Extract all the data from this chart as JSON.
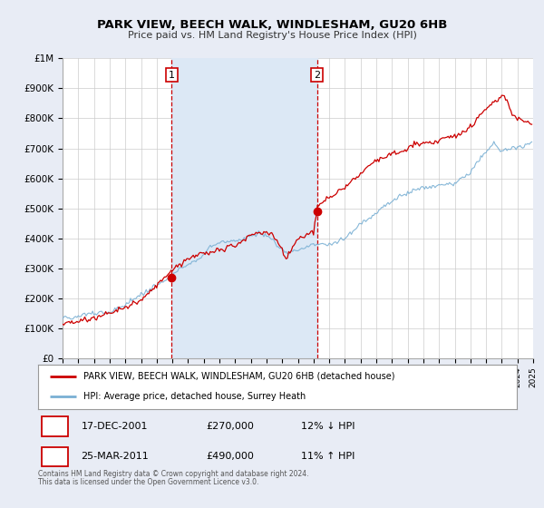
{
  "title": "PARK VIEW, BEECH WALK, WINDLESHAM, GU20 6HB",
  "subtitle": "Price paid vs. HM Land Registry's House Price Index (HPI)",
  "legend_line1": "PARK VIEW, BEECH WALK, WINDLESHAM, GU20 6HB (detached house)",
  "legend_line2": "HPI: Average price, detached house, Surrey Heath",
  "sale1_date": "17-DEC-2001",
  "sale1_price": "£270,000",
  "sale1_hpi": "12% ↓ HPI",
  "sale1_x": 2001.96,
  "sale1_y": 270000,
  "sale2_date": "25-MAR-2011",
  "sale2_price": "£490,000",
  "sale2_hpi": "11% ↑ HPI",
  "sale2_x": 2011.23,
  "sale2_y": 490000,
  "footnote1": "Contains HM Land Registry data © Crown copyright and database right 2024.",
  "footnote2": "This data is licensed under the Open Government Licence v3.0.",
  "background_color": "#e8ecf5",
  "plot_bg_color": "#ffffff",
  "red_line_color": "#cc0000",
  "blue_line_color": "#7ab0d4",
  "vline_color": "#cc0000",
  "shade_color": "#dce8f5",
  "xmin": 1995,
  "xmax": 2025,
  "ymin": 0,
  "ymax": 1000000,
  "yticks": [
    0,
    100000,
    200000,
    300000,
    400000,
    500000,
    600000,
    700000,
    800000,
    900000,
    1000000
  ],
  "ytick_labels": [
    "£0",
    "£100K",
    "£200K",
    "£300K",
    "£400K",
    "£500K",
    "£600K",
    "£700K",
    "£800K",
    "£900K",
    "£1M"
  ]
}
